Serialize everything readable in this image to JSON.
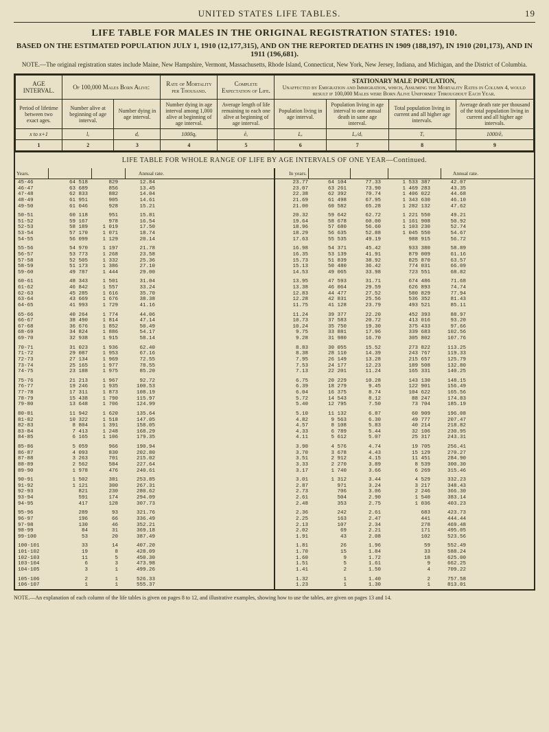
{
  "page": {
    "running_head": "UNITED STATES LIFE TABLES.",
    "page_number": "19",
    "title_main": "LIFE TABLE FOR MALES IN THE ORIGINAL REGISTRATION STATES: 1910.",
    "title_sub": "BASED ON THE ESTIMATED POPULATION JULY 1, 1910 (12,177,315), AND ON THE REPORTED DEATHS IN 1909 (188,197), IN 1910 (201,173), AND IN 1911 (196,681).",
    "note_top": "NOTE.—The original registration states include Maine, New Hampshire, Vermont, Massachusetts, Rhode Island, Connecticut, New York, New Jersey, Indiana, and Michigan, and the District of Columbia.",
    "footnote": "NOTE.—An explanation of each column of the life tables is given on pages 8 to 12, and illustrative examples, showing how to use the tables, are given on pages 13 and 14."
  },
  "header": {
    "cols": [
      {
        "title": "AGE INTERVAL.",
        "sub": "Period of lifetime between two exact ages.",
        "sym": "x to x+1",
        "num": "1"
      },
      {
        "title": "Of 100,000 Males Born Alive:",
        "sub": "Number alive at beginning of age interval.",
        "sym": "lₓ",
        "num": "2"
      },
      {
        "title": "",
        "sub": "Number dying in age interval.",
        "sym": "dₓ",
        "num": "3"
      },
      {
        "title": "Rate of Mortality per Thousand.",
        "sub": "Number dying in age interval among 1,000 alive at beginning of age interval.",
        "sym": "1000qₓ",
        "num": "4"
      },
      {
        "title": "Complete Expectation of Life.",
        "sub": "Average length of life remaining to each one alive at beginning of age interval.",
        "sym": "e̊ₓ",
        "num": "5"
      },
      {
        "title": "STATIONARY MALE POPULATION,",
        "sub": "Population living in age interval.",
        "sym": "Lₓ",
        "num": "6"
      },
      {
        "title": "",
        "sub": "Population living in age interval to one annual death in same age interval.",
        "sym": "Lₓ/dₓ",
        "num": "7"
      },
      {
        "title": "",
        "sub": "Total population living in current and all higher age intervals.",
        "sym": "Tₓ",
        "num": "8"
      },
      {
        "title": "",
        "sub": "Average death rate per thousand of the total population living in current and all higher age intervals.",
        "sym": "1000/e̊ₓ",
        "num": "9"
      }
    ],
    "stationary_desc": "Unaffected by Emigration and Immigration, which, Assuming the Mortality Rates in Column 4, would result if 100,000 Males were Born Alive Uniformly Throughout Each Year."
  },
  "mid_heading": "LIFE TABLE FOR WHOLE RANGE OF LIFE BY AGE INTERVALS OF ONE YEAR—Continued.",
  "left_headers": {
    "years": "Years.",
    "rate": "Annual rate."
  },
  "right_headers": {
    "years": "In years.",
    "rate": "Annual rate."
  },
  "blocks_left": [
    [
      [
        "45-46",
        "64 518",
        "829",
        "12.84"
      ],
      [
        "46-47",
        "63 689",
        "856",
        "13.45"
      ],
      [
        "47-48",
        "62 833",
        "882",
        "14.04"
      ],
      [
        "48-49",
        "61 951",
        "905",
        "14.61"
      ],
      [
        "49-50",
        "61 046",
        "928",
        "15.21"
      ]
    ],
    [
      [
        "50-51",
        "60 118",
        "951",
        "15.81"
      ],
      [
        "51-52",
        "59 167",
        "978",
        "16.54"
      ],
      [
        "52-53",
        "58 189",
        "1 019",
        "17.50"
      ],
      [
        "53-54",
        "57 170",
        "1 071",
        "18.74"
      ],
      [
        "54-55",
        "56 099",
        "1 129",
        "20.14"
      ]
    ],
    [
      [
        "55-56",
        "54 970",
        "1 197",
        "21.78"
      ],
      [
        "56-57",
        "53 773",
        "1 268",
        "23.58"
      ],
      [
        "57-58",
        "52 505",
        "1 332",
        "25.36"
      ],
      [
        "58-59",
        "51 173",
        "1 386",
        "27.10"
      ],
      [
        "59-60",
        "49 787",
        "1 444",
        "29.00"
      ]
    ],
    [
      [
        "60-61",
        "48 343",
        "1 501",
        "31.04"
      ],
      [
        "61-62",
        "46 842",
        "1 557",
        "33.24"
      ],
      [
        "62-63",
        "45 285",
        "1 616",
        "35.70"
      ],
      [
        "63-64",
        "43 669",
        "1 676",
        "38.38"
      ],
      [
        "64-65",
        "41 993",
        "1 729",
        "41.16"
      ]
    ],
    [
      [
        "65-66",
        "40 264",
        "1 774",
        "44.06"
      ],
      [
        "66-67",
        "38 490",
        "1 814",
        "47.14"
      ],
      [
        "67-68",
        "36 676",
        "1 852",
        "50.49"
      ],
      [
        "68-69",
        "34 824",
        "1 886",
        "54.17"
      ],
      [
        "69-70",
        "32 938",
        "1 915",
        "58.14"
      ]
    ],
    [
      [
        "70-71",
        "31 023",
        "1 936",
        "62.40"
      ],
      [
        "71-72",
        "29 087",
        "1 953",
        "67.16"
      ],
      [
        "72-73",
        "27 134",
        "1 969",
        "72.55"
      ],
      [
        "73-74",
        "25 165",
        "1 977",
        "78.55"
      ],
      [
        "74-75",
        "23 188",
        "1 975",
        "85.20"
      ]
    ],
    [
      [
        "75-76",
        "21 213",
        "1 967",
        "92.72"
      ],
      [
        "76-77",
        "19 246",
        "1 935",
        "100.53"
      ],
      [
        "77-78",
        "17 311",
        "1 873",
        "108.19"
      ],
      [
        "78-79",
        "15 438",
        "1 790",
        "115.97"
      ],
      [
        "79-80",
        "13 648",
        "1 706",
        "124.99"
      ]
    ],
    [
      [
        "80-81",
        "11 942",
        "1 620",
        "135.64"
      ],
      [
        "81-82",
        "10 322",
        "1 518",
        "147.05"
      ],
      [
        "82-83",
        "8 804",
        "1 391",
        "158.05"
      ],
      [
        "83-84",
        "7 413",
        "1 248",
        "168.29"
      ],
      [
        "84-85",
        "6 165",
        "1 106",
        "179.35"
      ]
    ],
    [
      [
        "85-86",
        "5 059",
        "966",
        "190.94"
      ],
      [
        "86-87",
        "4 093",
        "830",
        "202.80"
      ],
      [
        "87-88",
        "3 263",
        "701",
        "215.02"
      ],
      [
        "88-89",
        "2 562",
        "584",
        "227.64"
      ],
      [
        "89-90",
        "1 978",
        "476",
        "240.61"
      ]
    ],
    [
      [
        "90-91",
        "1 502",
        "381",
        "253.85"
      ],
      [
        "91-92",
        "1 121",
        "300",
        "267.31"
      ],
      [
        "92-93",
        "821",
        "230",
        "280.62"
      ],
      [
        "93-94",
        "591",
        "174",
        "294.09"
      ],
      [
        "94-95",
        "417",
        "128",
        "307.73"
      ]
    ],
    [
      [
        "95-96",
        "289",
        "93",
        "321.76"
      ],
      [
        "96-97",
        "196",
        "66",
        "336.49"
      ],
      [
        "97-98",
        "130",
        "46",
        "352.21"
      ],
      [
        "98-99",
        "84",
        "31",
        "369.18"
      ],
      [
        "99-100",
        "53",
        "20",
        "387.49"
      ]
    ],
    [
      [
        "100-101",
        "33",
        "14",
        "407.20"
      ],
      [
        "101-102",
        "19",
        "8",
        "428.09"
      ],
      [
        "102-103",
        "11",
        "5",
        "450.30"
      ],
      [
        "103-104",
        "6",
        "3",
        "473.98"
      ],
      [
        "104-105",
        "3",
        "1",
        "499.26"
      ]
    ],
    [
      [
        "105-106",
        "2",
        "1",
        "526.33"
      ],
      [
        "106-107",
        "1",
        "1",
        "555.37"
      ]
    ]
  ],
  "blocks_right": [
    [
      [
        "23.77",
        "64 104",
        "77.33",
        "1 533 387",
        "42.07"
      ],
      [
        "23.07",
        "63 261",
        "73.90",
        "1 469 283",
        "43.35"
      ],
      [
        "22.38",
        "62 392",
        "70.74",
        "1 406 022",
        "44.68"
      ],
      [
        "21.69",
        "61 498",
        "67.95",
        "1 343 630",
        "46.10"
      ],
      [
        "21.00",
        "60 582",
        "65.28",
        "1 282 132",
        "47.62"
      ]
    ],
    [
      [
        "20.32",
        "59 642",
        "62.72",
        "1 221 550",
        "49.21"
      ],
      [
        "19.64",
        "58 678",
        "60.00",
        "1 161 908",
        "50.92"
      ],
      [
        "18.96",
        "57 680",
        "56.60",
        "1 103 230",
        "52.74"
      ],
      [
        "18.29",
        "56 635",
        "52.88",
        "1 045 550",
        "54.67"
      ],
      [
        "17.63",
        "55 535",
        "49.19",
        "988 915",
        "56.72"
      ]
    ],
    [
      [
        "16.98",
        "54 371",
        "45.42",
        "933 380",
        "58.89"
      ],
      [
        "16.35",
        "53 139",
        "41.91",
        "879 009",
        "61.16"
      ],
      [
        "15.73",
        "51 839",
        "38.92",
        "825 870",
        "63.57"
      ],
      [
        "15.13",
        "50 480",
        "36.42",
        "774 031",
        "66.09"
      ],
      [
        "14.53",
        "49 065",
        "33.98",
        "723 551",
        "68.82"
      ]
    ],
    [
      [
        "13.95",
        "47 593",
        "31.71",
        "674 486",
        "71.68"
      ],
      [
        "13.38",
        "46 064",
        "29.59",
        "626 893",
        "74.74"
      ],
      [
        "12.83",
        "44 477",
        "27.52",
        "580 829",
        "77.94"
      ],
      [
        "12.28",
        "42 831",
        "25.56",
        "536 352",
        "81.43"
      ],
      [
        "11.75",
        "41 128",
        "23.79",
        "493 521",
        "85.11"
      ]
    ],
    [
      [
        "11.24",
        "39 377",
        "22.20",
        "452 393",
        "88.97"
      ],
      [
        "10.73",
        "37 583",
        "20.72",
        "413 016",
        "93.20"
      ],
      [
        "10.24",
        "35 750",
        "19.30",
        "375 433",
        "97.66"
      ],
      [
        "9.75",
        "33 881",
        "17.96",
        "339 683",
        "102.56"
      ],
      [
        "9.28",
        "31 980",
        "16.70",
        "305 802",
        "107.76"
      ]
    ],
    [
      [
        "8.83",
        "30 055",
        "15.52",
        "273 822",
        "113.25"
      ],
      [
        "8.38",
        "28 110",
        "14.39",
        "243 767",
        "119.33"
      ],
      [
        "7.95",
        "26 149",
        "13.28",
        "215 657",
        "125.79"
      ],
      [
        "7.53",
        "24 177",
        "12.23",
        "189 508",
        "132.80"
      ],
      [
        "7.13",
        "22 201",
        "11.24",
        "165 331",
        "140.25"
      ]
    ],
    [
      [
        "6.75",
        "20 229",
        "10.28",
        "143 130",
        "148.15"
      ],
      [
        "6.39",
        "18 279",
        "9.45",
        "122 901",
        "156.49"
      ],
      [
        "6.04",
        "16 375",
        "8.74",
        "104 622",
        "165.56"
      ],
      [
        "5.72",
        "14 543",
        "8.12",
        "88 247",
        "174.83"
      ],
      [
        "5.40",
        "12 795",
        "7.50",
        "73 704",
        "185.19"
      ]
    ],
    [
      [
        "5.10",
        "11 132",
        "6.87",
        "60 909",
        "196.08"
      ],
      [
        "4.82",
        "9 563",
        "6.30",
        "49 777",
        "207.47"
      ],
      [
        "4.57",
        "8 108",
        "5.83",
        "40 214",
        "218.82"
      ],
      [
        "4.33",
        "6 789",
        "5.44",
        "32 106",
        "230.95"
      ],
      [
        "4.11",
        "5 612",
        "5.07",
        "25 317",
        "243.31"
      ]
    ],
    [
      [
        "3.90",
        "4 576",
        "4.74",
        "19 705",
        "256.41"
      ],
      [
        "3.70",
        "3 678",
        "4.43",
        "15 129",
        "270.27"
      ],
      [
        "3.51",
        "2 912",
        "4.15",
        "11 451",
        "284.90"
      ],
      [
        "3.33",
        "2 270",
        "3.89",
        "8 539",
        "300.30"
      ],
      [
        "3.17",
        "1 740",
        "3.66",
        "6 269",
        "315.46"
      ]
    ],
    [
      [
        "3.01",
        "1 312",
        "3.44",
        "4 529",
        "332.23"
      ],
      [
        "2.87",
        "971",
        "3.24",
        "3 217",
        "348.43"
      ],
      [
        "2.73",
        "706",
        "3.06",
        "2 246",
        "366.30"
      ],
      [
        "2.61",
        "504",
        "2.90",
        "1 540",
        "383.14"
      ],
      [
        "2.48",
        "353",
        "2.75",
        "1 036",
        "403.23"
      ]
    ],
    [
      [
        "2.36",
        "242",
        "2.61",
        "683",
        "423.73"
      ],
      [
        "2.25",
        "163",
        "2.47",
        "441",
        "444.44"
      ],
      [
        "2.13",
        "107",
        "2.34",
        "278",
        "469.48"
      ],
      [
        "2.02",
        "69",
        "2.21",
        "171",
        "495.05"
      ],
      [
        "1.91",
        "43",
        "2.08",
        "102",
        "523.56"
      ]
    ],
    [
      [
        "1.81",
        "26",
        "1.96",
        "59",
        "552.49"
      ],
      [
        "1.70",
        "15",
        "1.84",
        "33",
        "588.24"
      ],
      [
        "1.60",
        "9",
        "1.72",
        "18",
        "625.00"
      ],
      [
        "1.51",
        "5",
        "1.61",
        "9",
        "662.25"
      ],
      [
        "1.41",
        "2",
        "1.50",
        "4",
        "709.22"
      ]
    ],
    [
      [
        "1.32",
        "1",
        "1.40",
        "2",
        "757.58"
      ],
      [
        "1.23",
        "1",
        "1.30",
        "1",
        "813.01"
      ]
    ]
  ]
}
